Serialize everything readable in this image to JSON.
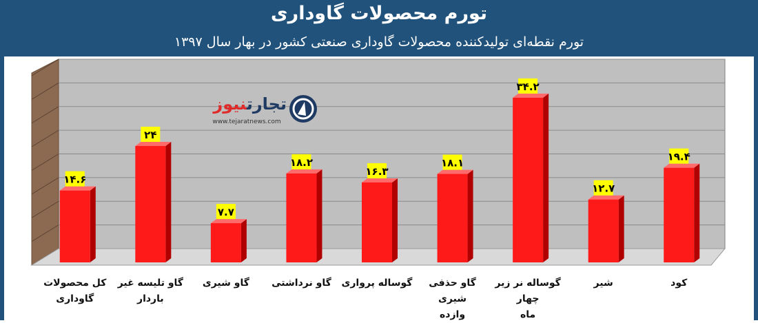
{
  "header": {
    "title": "تورم محصولات گاوداری",
    "subtitle": "تورم نقطه‌ای تولیدکننده محصولات  گاوداری صنعتی کشور در بهار سال ۱۳۹۷"
  },
  "logo": {
    "name_part1": "تجارت",
    "name_part2": "نیوز",
    "url": "www.tejaratnews.com"
  },
  "colors": {
    "frame": "#21527c",
    "bar": "#ff1a1a",
    "bar_dark": "#b00000",
    "label_bg": "#ffff00",
    "plot_wall": "#bfbfbf",
    "plot_side": "#8c6a52"
  },
  "chart_data": {
    "type": "bar",
    "title": "تورم محصولات گاوداری",
    "subtitle": "تورم نقطه‌ای تولیدکننده محصولات  گاوداری صنعتی کشور در بهار سال ۱۳۹۷",
    "categories": [
      [
        "کل محصولات",
        "گاوداری"
      ],
      [
        "گاو تلیسه غیر",
        "باردار"
      ],
      [
        "گاو شیری"
      ],
      [
        "گاو نرداشتی"
      ],
      [
        "گوساله پرواری"
      ],
      [
        "گاو حذفی شیری",
        "وازده"
      ],
      [
        "گوساله نر زیر چهار",
        "ماه"
      ],
      [
        "شیر"
      ],
      [
        "کود"
      ]
    ],
    "values": [
      14.6,
      24,
      7.7,
      18.2,
      16.3,
      18.1,
      34.2,
      12.7,
      19.4
    ],
    "data_labels": [
      "۱۴.۶",
      "۲۴",
      "۷.۷",
      "۱۸.۲",
      "۱۶.۳",
      "۱۸.۱",
      "۳۴.۲",
      "۱۲.۷",
      "۱۹.۴"
    ],
    "ylim": [
      0,
      40
    ],
    "grid": true,
    "legend": "none"
  }
}
